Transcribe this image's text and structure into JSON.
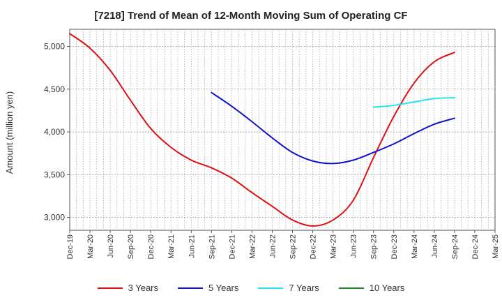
{
  "chart_data": {
    "type": "line",
    "title": "[7218]  Trend of Mean of 12-Month Moving Sum of Operating CF",
    "xlabel": "",
    "ylabel": "Amount (million yen)",
    "ylim": [
      2850,
      5200
    ],
    "y_ticks": [
      3000,
      3500,
      4000,
      4500,
      5000
    ],
    "y_tick_labels": [
      "3,000",
      "3,500",
      "4,000",
      "4,500",
      "5,000"
    ],
    "x_tick_labels": [
      "Dec-19",
      "Mar-20",
      "Jun-20",
      "Sep-20",
      "Dec-20",
      "Mar-21",
      "Jun-21",
      "Sep-21",
      "Dec-21",
      "Mar-22",
      "Jun-22",
      "Sep-22",
      "Dec-22",
      "Mar-23",
      "Jun-23",
      "Sep-23",
      "Dec-23",
      "Mar-24",
      "Jun-24",
      "Sep-24",
      "Dec-24",
      "Mar-25"
    ],
    "x_tick_months": [
      0,
      3,
      6,
      9,
      12,
      15,
      18,
      21,
      24,
      27,
      30,
      33,
      36,
      39,
      42,
      45,
      48,
      51,
      54,
      57,
      60,
      63
    ],
    "x_range_months": [
      0,
      63
    ],
    "grid": true,
    "legend_position": "bottom",
    "series": [
      {
        "name": "3 Years",
        "color": "#dd1111",
        "x_months": [
          0,
          3,
          6,
          9,
          12,
          15,
          18,
          21,
          24,
          27,
          30,
          33,
          36,
          39,
          42,
          45,
          48,
          51,
          54,
          57
        ],
        "values": [
          5150,
          4980,
          4720,
          4370,
          4040,
          3820,
          3670,
          3580,
          3460,
          3290,
          3130,
          2970,
          2900,
          2970,
          3200,
          3700,
          4180,
          4570,
          4820,
          4930
        ]
      },
      {
        "name": "5 Years",
        "color": "#1111cc",
        "x_months": [
          21,
          24,
          27,
          30,
          33,
          36,
          39,
          42,
          45,
          48,
          51,
          54,
          57
        ],
        "values": [
          4460,
          4300,
          4120,
          3930,
          3760,
          3660,
          3630,
          3670,
          3760,
          3860,
          3980,
          4090,
          4160
        ]
      },
      {
        "name": "7 Years",
        "color": "#22e5f0",
        "x_months": [
          45,
          48,
          51,
          54,
          57
        ],
        "values": [
          4290,
          4310,
          4350,
          4390,
          4400
        ]
      },
      {
        "name": "10 Years",
        "color": "#228822",
        "x_months": [],
        "values": []
      }
    ]
  }
}
